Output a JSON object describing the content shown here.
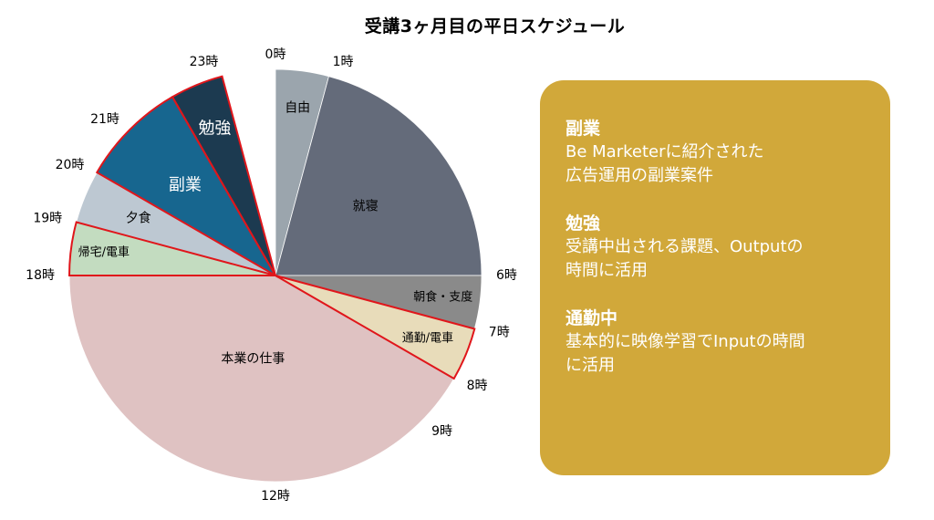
{
  "chart_data": {
    "type": "pie",
    "title": "受講3ヶ月目の平日スケジュール",
    "unit": "hours",
    "slices": [
      {
        "label": "自由",
        "start": 0,
        "end": 1,
        "color": "#9ba5ad",
        "label_color": "#000000",
        "highlight": false
      },
      {
        "label": "就寝",
        "start": 1,
        "end": 6,
        "color": "#646b7a",
        "label_color": "#000000",
        "highlight": false
      },
      {
        "label": "朝食・支度",
        "start": 6,
        "end": 7,
        "color": "#8a8a8a",
        "label_color": "#000000",
        "highlight": false
      },
      {
        "label": "通勤/電車",
        "start": 7,
        "end": 8,
        "color": "#e8dcba",
        "label_color": "#000000",
        "highlight": true
      },
      {
        "label": "本業の仕事",
        "start": 8,
        "end": 18,
        "color": "#dfc2c2",
        "label_color": "#000000",
        "highlight": false
      },
      {
        "label": "帰宅/電車",
        "start": 18,
        "end": 19,
        "color": "#c3dcc0",
        "label_color": "#000000",
        "highlight": true
      },
      {
        "label": "夕食",
        "start": 19,
        "end": 20,
        "color": "#bdc8d2",
        "label_color": "#000000",
        "highlight": false
      },
      {
        "label": "副業",
        "start": 20,
        "end": 22,
        "color": "#17668f",
        "label_color": "#ffffff",
        "highlight": true
      },
      {
        "label": "勉強",
        "start": 22,
        "end": 23,
        "color": "#1c3a50",
        "label_color": "#ffffff",
        "highlight": true
      }
    ],
    "hour_labels": [
      {
        "label": "0時",
        "hour": 0
      },
      {
        "label": "1時",
        "hour": 1
      },
      {
        "label": "6時",
        "hour": 6
      },
      {
        "label": "7時",
        "hour": 7
      },
      {
        "label": "8時",
        "hour": 8
      },
      {
        "label": "9時",
        "hour": 9
      },
      {
        "label": "12時",
        "hour": 12
      },
      {
        "label": "18時",
        "hour": 18
      },
      {
        "label": "19時",
        "hour": 19
      },
      {
        "label": "20時",
        "hour": 20
      },
      {
        "label": "21時",
        "hour": 21
      },
      {
        "label": "23時",
        "hour": 23
      }
    ]
  },
  "panel": {
    "notes": [
      {
        "title": "副業",
        "body": "Be Marketerに紹介された\n広告運用の副業案件"
      },
      {
        "title": "勉強",
        "body": "受講中出される課題、Outputの\n時間に活用"
      },
      {
        "title": "通勤中",
        "body": "基本的に映像学習でInputの時間\nに活用"
      }
    ]
  },
  "colors": {
    "panel_bg": "#d1a83a",
    "highlight_stroke": "#e0161b"
  }
}
